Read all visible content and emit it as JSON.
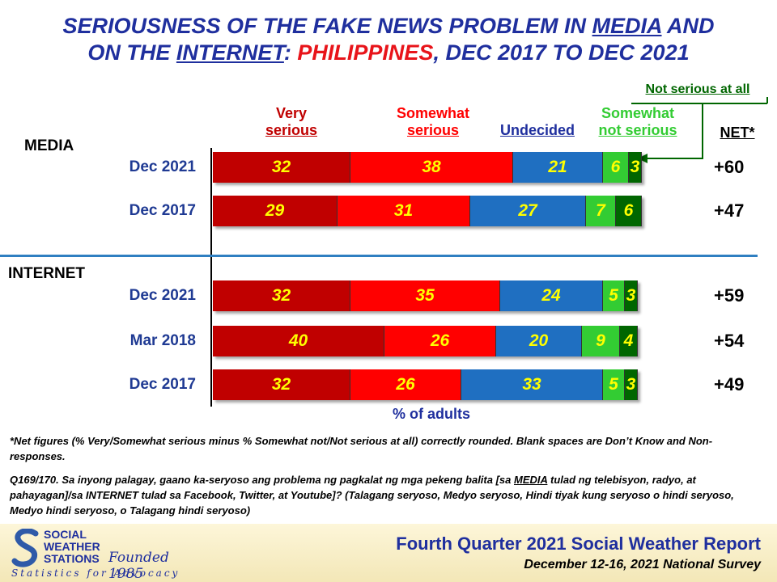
{
  "title": {
    "p1": "SERIOUSNESS OF THE FAKE NEWS PROBLEM IN ",
    "media": "MEDIA",
    "p2": " AND",
    "p3": "ON THE ",
    "internet": "INTERNET",
    "p4": ": ",
    "country": "PHILIPPINES",
    "p5": ",  DEC 2017 TO DEC 2021"
  },
  "headers": {
    "very": [
      "Very",
      "serious"
    ],
    "somewhat": [
      "Somewhat",
      "serious"
    ],
    "undecided": "Undecided",
    "somewhat_not": [
      "Somewhat",
      "not serious"
    ],
    "not_at_all": "Not serious at all",
    "net": "NET*"
  },
  "colors": {
    "very": "#c00000",
    "somewhat": "#ff0000",
    "undecided": "#1f6fc1",
    "somewhat_not": "#33cc33",
    "not_at_all": "#006600",
    "label_text": "#ffff00"
  },
  "xlabel": "% of adults",
  "chart_data": {
    "type": "bar",
    "stacked": true,
    "orientation": "horizontal",
    "series_names": [
      "Very serious",
      "Somewhat serious",
      "Undecided",
      "Somewhat not serious",
      "Not serious at all"
    ],
    "groups": [
      {
        "name": "MEDIA",
        "rows": [
          {
            "label": "Dec 2021",
            "values": [
              32,
              38,
              21,
              6,
              3
            ],
            "net": "+60"
          },
          {
            "label": "Dec 2017",
            "values": [
              29,
              31,
              27,
              7,
              6
            ],
            "net": "+47"
          }
        ]
      },
      {
        "name": "INTERNET",
        "rows": [
          {
            "label": "Dec 2021",
            "values": [
              32,
              35,
              24,
              5,
              3
            ],
            "net": "+59"
          },
          {
            "label": "Mar 2018",
            "values": [
              40,
              26,
              20,
              9,
              4
            ],
            "net": "+54"
          },
          {
            "label": "Dec 2017",
            "values": [
              32,
              26,
              33,
              5,
              3
            ],
            "net": "+49"
          }
        ]
      }
    ]
  },
  "notes": {
    "net": "*Net figures (% Very/Somewhat serious minus % Somewhat not/Not serious at all) correctly rounded. Blank spaces are Don’t Know and Non-responses.",
    "q_a": "Q169/170. Sa inyong palagay, gaano ka-seryoso ang problema ng pagkalat ng mga pekeng balita [sa ",
    "q_media": "MEDIA",
    "q_b": " tulad ng telebisyon, radyo, at pahayagan]/sa INTERNET tulad sa Facebook, Twitter, at Youtube]? (Talagang seryoso, Medyo seryoso, Hindi tiyak kung seryoso o hindi seryoso, Medyo hindi seryoso, o Talagang hindi seryoso)"
  },
  "footer": {
    "org1": "SOCIAL",
    "org2": "WEATHER",
    "org3": "STATIONS",
    "founded": "Founded 1985",
    "tagline": "Statistics for Advocacy",
    "report": "Fourth Quarter 2021 Social Weather Report",
    "survey": "December 12-16, 2021 National Survey"
  }
}
